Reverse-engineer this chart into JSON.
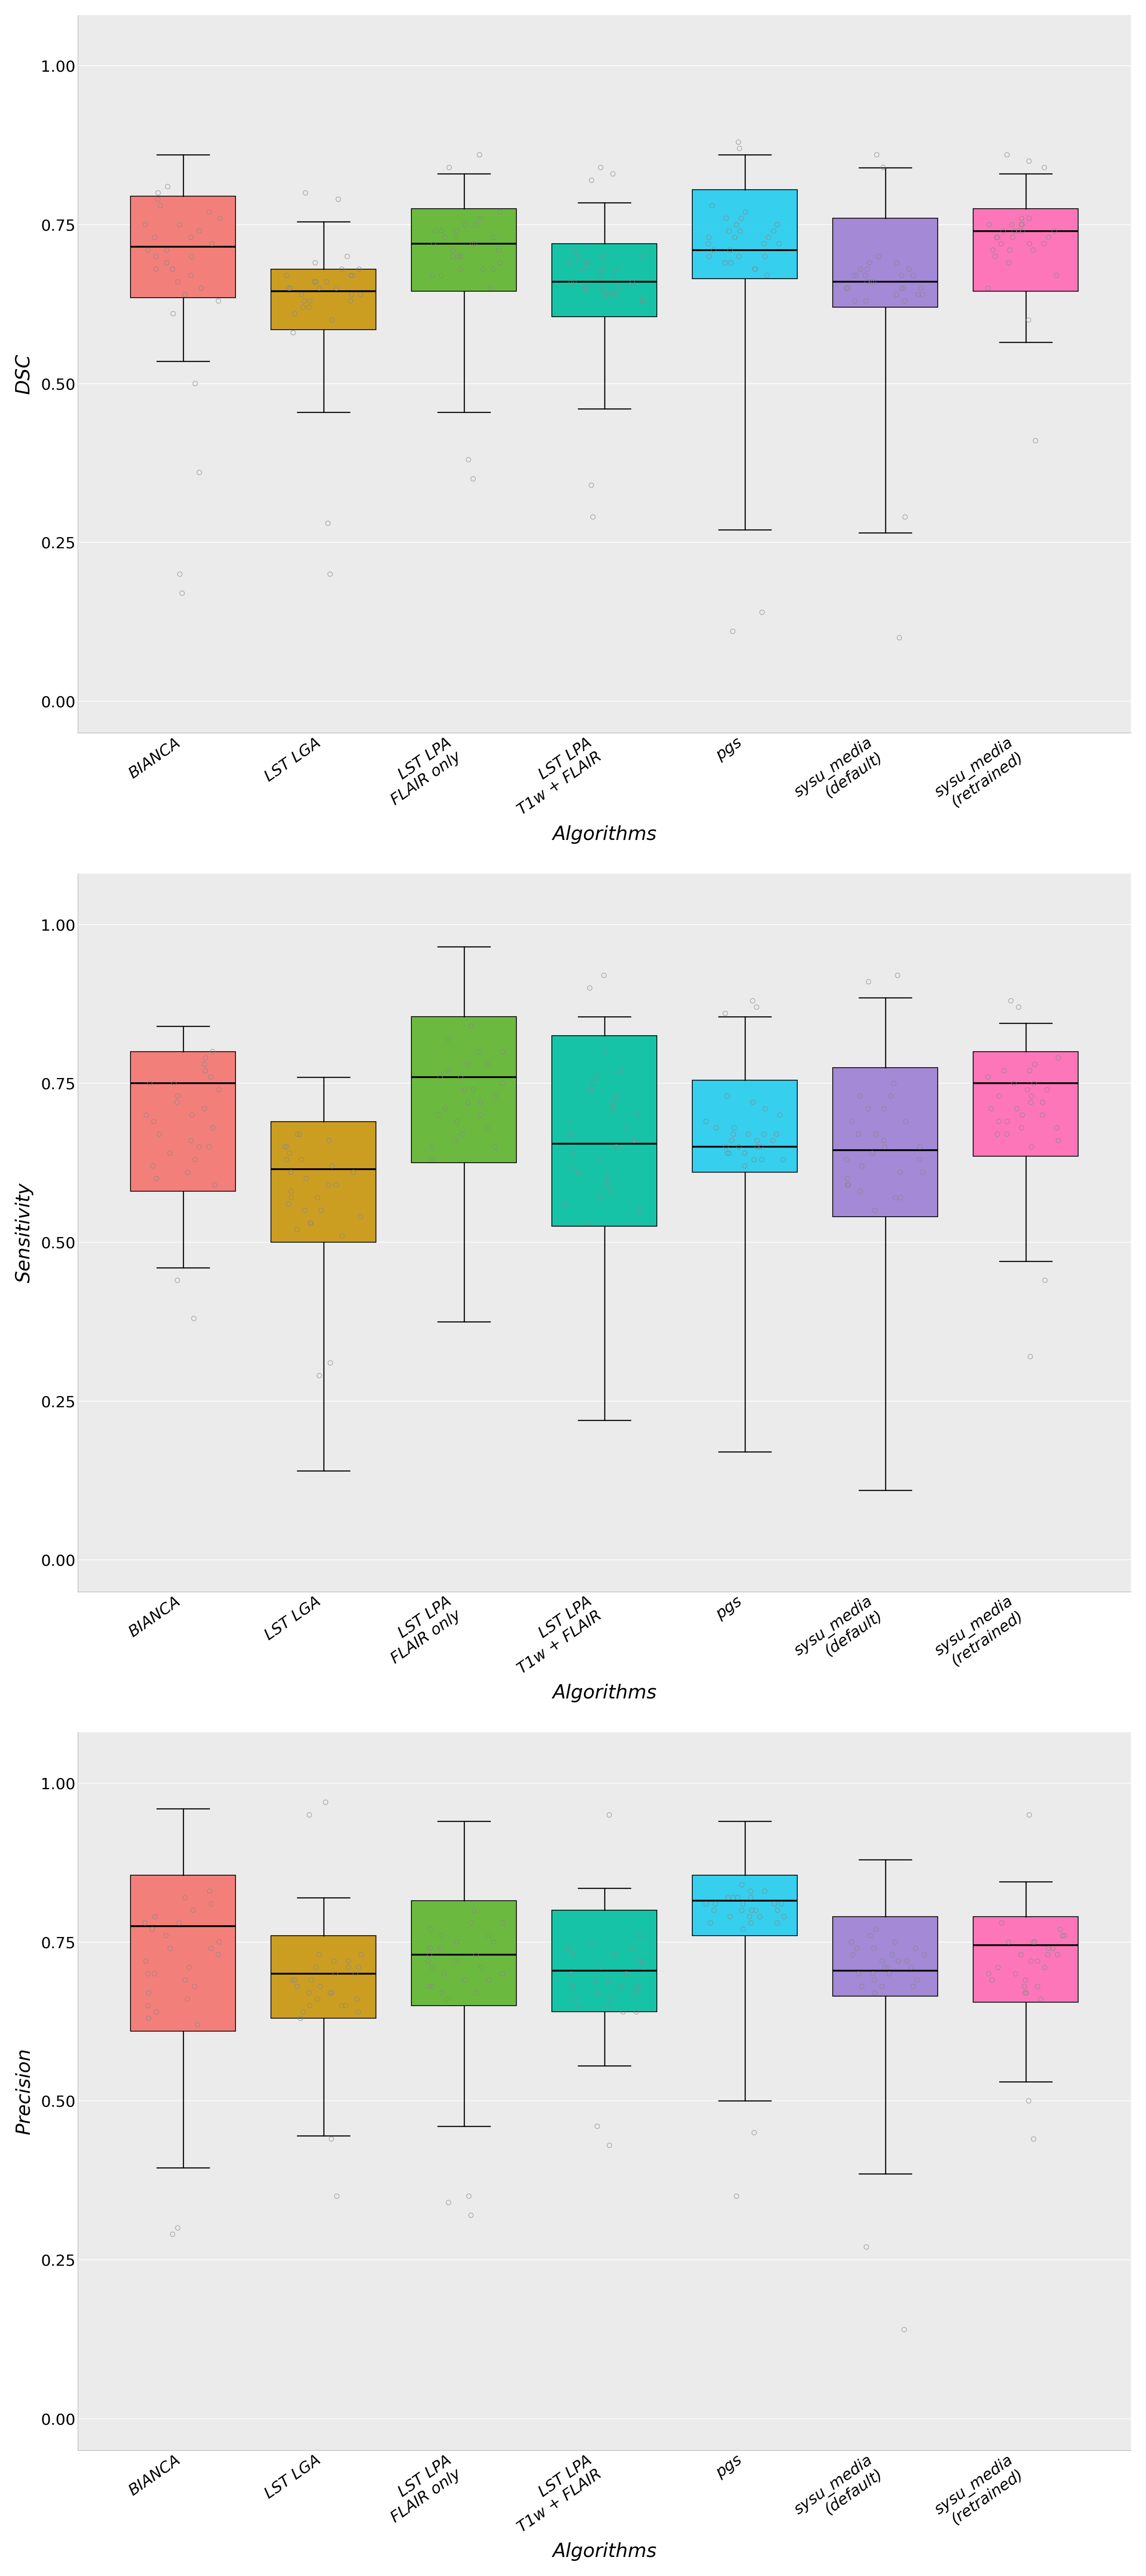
{
  "algorithms": [
    "BIANCA",
    "LST LGA",
    "LST LPA\nFLAIR only",
    "LST LPA\nT1w + FLAIR",
    "pgs",
    "sysu_media\n(default)",
    "sysu_media\n(retrained)"
  ],
  "colors": [
    "#F4736E",
    "#C8960C",
    "#5DB52C",
    "#00BFA0",
    "#22CCEE",
    "#9B7FD4",
    "#FF69B4"
  ],
  "panels": [
    {
      "ylabel": "DSC",
      "boxes": [
        {
          "q1": 0.635,
          "median": 0.715,
          "q3": 0.795,
          "whislo": 0.535,
          "whishi": 0.86,
          "fliers_lo": [
            0.36,
            0.5,
            0.2,
            0.17
          ],
          "fliers_hi": []
        },
        {
          "q1": 0.585,
          "median": 0.645,
          "q3": 0.68,
          "whislo": 0.455,
          "whishi": 0.755,
          "fliers_lo": [
            0.28,
            0.2
          ],
          "fliers_hi": [
            0.79,
            0.8
          ]
        },
        {
          "q1": 0.645,
          "median": 0.72,
          "q3": 0.775,
          "whislo": 0.455,
          "whishi": 0.83,
          "fliers_lo": [
            0.35,
            0.38
          ],
          "fliers_hi": [
            0.84,
            0.86
          ]
        },
        {
          "q1": 0.605,
          "median": 0.66,
          "q3": 0.72,
          "whislo": 0.46,
          "whishi": 0.785,
          "fliers_lo": [
            0.29,
            0.34
          ],
          "fliers_hi": [
            0.82,
            0.83,
            0.84
          ]
        },
        {
          "q1": 0.665,
          "median": 0.71,
          "q3": 0.805,
          "whislo": 0.27,
          "whishi": 0.86,
          "fliers_lo": [
            0.11,
            0.14
          ],
          "fliers_hi": [
            0.87,
            0.88
          ]
        },
        {
          "q1": 0.62,
          "median": 0.66,
          "q3": 0.76,
          "whislo": 0.265,
          "whishi": 0.84,
          "fliers_lo": [
            0.1,
            0.29
          ],
          "fliers_hi": [
            0.84,
            0.86
          ]
        },
        {
          "q1": 0.645,
          "median": 0.74,
          "q3": 0.775,
          "whislo": 0.565,
          "whishi": 0.83,
          "fliers_lo": [
            0.41,
            0.6
          ],
          "fliers_hi": [
            0.84,
            0.85,
            0.86
          ]
        }
      ],
      "scatter_data": [
        [
          0.61,
          0.63,
          0.65,
          0.67,
          0.68,
          0.7,
          0.71,
          0.72,
          0.73,
          0.74,
          0.75,
          0.76,
          0.77,
          0.78,
          0.79,
          0.8,
          0.81,
          0.64,
          0.66,
          0.69,
          0.7,
          0.73,
          0.71,
          0.68,
          0.75
        ],
        [
          0.58,
          0.6,
          0.61,
          0.62,
          0.63,
          0.64,
          0.65,
          0.66,
          0.67,
          0.68,
          0.69,
          0.7,
          0.63,
          0.65,
          0.67,
          0.64,
          0.66,
          0.62,
          0.65,
          0.63,
          0.67,
          0.64,
          0.66,
          0.68,
          0.65
        ],
        [
          0.65,
          0.67,
          0.68,
          0.7,
          0.71,
          0.72,
          0.73,
          0.74,
          0.75,
          0.76,
          0.77,
          0.68,
          0.7,
          0.72,
          0.74,
          0.69,
          0.71,
          0.73,
          0.75,
          0.67,
          0.72,
          0.74,
          0.7,
          0.68,
          0.73
        ],
        [
          0.63,
          0.64,
          0.65,
          0.66,
          0.67,
          0.68,
          0.69,
          0.7,
          0.71,
          0.64,
          0.66,
          0.68,
          0.7,
          0.65,
          0.67,
          0.69,
          0.63,
          0.65,
          0.67,
          0.69,
          0.64,
          0.66,
          0.68,
          0.7,
          0.65
        ],
        [
          0.67,
          0.68,
          0.69,
          0.7,
          0.71,
          0.72,
          0.73,
          0.74,
          0.75,
          0.76,
          0.77,
          0.78,
          0.7,
          0.72,
          0.74,
          0.69,
          0.71,
          0.73,
          0.75,
          0.68,
          0.72,
          0.74,
          0.7,
          0.73,
          0.76
        ],
        [
          0.63,
          0.64,
          0.65,
          0.66,
          0.67,
          0.68,
          0.69,
          0.7,
          0.65,
          0.67,
          0.63,
          0.65,
          0.67,
          0.69,
          0.64,
          0.66,
          0.68,
          0.64,
          0.66,
          0.68,
          0.65,
          0.67,
          0.63,
          0.65,
          0.67
        ],
        [
          0.65,
          0.67,
          0.69,
          0.71,
          0.73,
          0.75,
          0.74,
          0.76,
          0.72,
          0.74,
          0.7,
          0.73,
          0.75,
          0.72,
          0.74,
          0.71,
          0.73,
          0.75,
          0.72,
          0.74,
          0.73,
          0.75,
          0.71,
          0.74,
          0.76
        ]
      ]
    },
    {
      "ylabel": "Sensitivity",
      "boxes": [
        {
          "q1": 0.58,
          "median": 0.75,
          "q3": 0.8,
          "whislo": 0.46,
          "whishi": 0.84,
          "fliers_lo": [
            0.38,
            0.44
          ],
          "fliers_hi": []
        },
        {
          "q1": 0.5,
          "median": 0.615,
          "q3": 0.69,
          "whislo": 0.14,
          "whishi": 0.76,
          "fliers_lo": [
            0.29,
            0.31
          ],
          "fliers_hi": []
        },
        {
          "q1": 0.625,
          "median": 0.76,
          "q3": 0.855,
          "whislo": 0.375,
          "whishi": 0.965,
          "fliers_lo": [],
          "fliers_hi": []
        },
        {
          "q1": 0.525,
          "median": 0.655,
          "q3": 0.825,
          "whislo": 0.22,
          "whishi": 0.855,
          "fliers_lo": [],
          "fliers_hi": [
            0.9,
            0.92
          ]
        },
        {
          "q1": 0.61,
          "median": 0.65,
          "q3": 0.755,
          "whislo": 0.17,
          "whishi": 0.855,
          "fliers_lo": [],
          "fliers_hi": [
            0.86,
            0.87,
            0.88
          ]
        },
        {
          "q1": 0.54,
          "median": 0.645,
          "q3": 0.775,
          "whislo": 0.11,
          "whishi": 0.885,
          "fliers_lo": [],
          "fliers_hi": [
            0.91,
            0.92
          ]
        },
        {
          "q1": 0.635,
          "median": 0.75,
          "q3": 0.8,
          "whislo": 0.47,
          "whishi": 0.845,
          "fliers_lo": [
            0.32,
            0.44
          ],
          "fliers_hi": [
            0.87,
            0.88
          ]
        }
      ],
      "scatter_data": [
        [
          0.59,
          0.61,
          0.63,
          0.65,
          0.67,
          0.69,
          0.71,
          0.73,
          0.75,
          0.77,
          0.79,
          0.6,
          0.62,
          0.64,
          0.66,
          0.68,
          0.7,
          0.72,
          0.74,
          0.76,
          0.78,
          0.8,
          0.75,
          0.7,
          0.65
        ],
        [
          0.51,
          0.53,
          0.55,
          0.57,
          0.59,
          0.61,
          0.63,
          0.65,
          0.67,
          0.52,
          0.54,
          0.56,
          0.58,
          0.6,
          0.62,
          0.64,
          0.66,
          0.53,
          0.55,
          0.57,
          0.59,
          0.61,
          0.63,
          0.65,
          0.67
        ],
        [
          0.63,
          0.65,
          0.67,
          0.7,
          0.72,
          0.74,
          0.76,
          0.78,
          0.8,
          0.82,
          0.84,
          0.65,
          0.68,
          0.71,
          0.74,
          0.77,
          0.8,
          0.66,
          0.69,
          0.72,
          0.75,
          0.78,
          0.7,
          0.73,
          0.76
        ],
        [
          0.53,
          0.56,
          0.59,
          0.62,
          0.65,
          0.68,
          0.71,
          0.74,
          0.77,
          0.8,
          0.55,
          0.58,
          0.61,
          0.64,
          0.67,
          0.7,
          0.73,
          0.76,
          0.57,
          0.6,
          0.63,
          0.66,
          0.69,
          0.72,
          0.75
        ],
        [
          0.62,
          0.63,
          0.64,
          0.65,
          0.66,
          0.67,
          0.68,
          0.69,
          0.7,
          0.71,
          0.72,
          0.73,
          0.63,
          0.65,
          0.67,
          0.64,
          0.66,
          0.68,
          0.65,
          0.67,
          0.63,
          0.65,
          0.67,
          0.64,
          0.66
        ],
        [
          0.55,
          0.57,
          0.59,
          0.61,
          0.63,
          0.65,
          0.67,
          0.69,
          0.71,
          0.73,
          0.75,
          0.57,
          0.59,
          0.61,
          0.63,
          0.65,
          0.67,
          0.69,
          0.71,
          0.73,
          0.58,
          0.6,
          0.62,
          0.64,
          0.66
        ],
        [
          0.65,
          0.67,
          0.69,
          0.71,
          0.73,
          0.75,
          0.77,
          0.79,
          0.66,
          0.68,
          0.7,
          0.72,
          0.74,
          0.76,
          0.78,
          0.67,
          0.69,
          0.71,
          0.73,
          0.75,
          0.77,
          0.68,
          0.7,
          0.72,
          0.74
        ]
      ]
    },
    {
      "ylabel": "Precision",
      "boxes": [
        {
          "q1": 0.61,
          "median": 0.775,
          "q3": 0.855,
          "whislo": 0.395,
          "whishi": 0.96,
          "fliers_lo": [
            0.29,
            0.3
          ],
          "fliers_hi": []
        },
        {
          "q1": 0.63,
          "median": 0.7,
          "q3": 0.76,
          "whislo": 0.445,
          "whishi": 0.82,
          "fliers_lo": [
            0.35,
            0.44
          ],
          "fliers_hi": [
            0.95,
            0.97
          ]
        },
        {
          "q1": 0.65,
          "median": 0.73,
          "q3": 0.815,
          "whislo": 0.46,
          "whishi": 0.94,
          "fliers_lo": [
            0.32,
            0.34,
            0.35
          ],
          "fliers_hi": []
        },
        {
          "q1": 0.64,
          "median": 0.705,
          "q3": 0.8,
          "whislo": 0.555,
          "whishi": 0.835,
          "fliers_lo": [
            0.43,
            0.46
          ],
          "fliers_hi": [
            0.95
          ]
        },
        {
          "q1": 0.76,
          "median": 0.815,
          "q3": 0.855,
          "whislo": 0.5,
          "whishi": 0.94,
          "fliers_lo": [
            0.35,
            0.45
          ],
          "fliers_hi": []
        },
        {
          "q1": 0.665,
          "median": 0.705,
          "q3": 0.79,
          "whislo": 0.385,
          "whishi": 0.88,
          "fliers_lo": [
            0.14,
            0.27
          ],
          "fliers_hi": []
        },
        {
          "q1": 0.655,
          "median": 0.745,
          "q3": 0.79,
          "whislo": 0.53,
          "whishi": 0.845,
          "fliers_lo": [
            0.44,
            0.5
          ],
          "fliers_hi": [
            0.95
          ]
        }
      ],
      "scatter_data": [
        [
          0.62,
          0.65,
          0.68,
          0.71,
          0.74,
          0.77,
          0.8,
          0.83,
          0.64,
          0.67,
          0.7,
          0.73,
          0.76,
          0.79,
          0.82,
          0.63,
          0.66,
          0.69,
          0.72,
          0.75,
          0.78,
          0.81,
          0.7,
          0.74,
          0.78
        ],
        [
          0.63,
          0.65,
          0.67,
          0.69,
          0.71,
          0.73,
          0.65,
          0.67,
          0.69,
          0.71,
          0.73,
          0.64,
          0.66,
          0.68,
          0.7,
          0.72,
          0.65,
          0.67,
          0.69,
          0.71,
          0.64,
          0.66,
          0.68,
          0.7,
          0.72
        ],
        [
          0.66,
          0.68,
          0.7,
          0.72,
          0.74,
          0.76,
          0.78,
          0.8,
          0.67,
          0.69,
          0.71,
          0.73,
          0.75,
          0.77,
          0.67,
          0.69,
          0.71,
          0.73,
          0.75,
          0.68,
          0.7,
          0.72,
          0.74,
          0.76,
          0.78
        ],
        [
          0.64,
          0.66,
          0.68,
          0.7,
          0.72,
          0.74,
          0.76,
          0.65,
          0.67,
          0.69,
          0.71,
          0.73,
          0.75,
          0.64,
          0.66,
          0.68,
          0.7,
          0.72,
          0.74,
          0.65,
          0.67,
          0.69,
          0.71,
          0.73,
          0.68
        ],
        [
          0.77,
          0.78,
          0.79,
          0.8,
          0.81,
          0.82,
          0.83,
          0.84,
          0.78,
          0.79,
          0.8,
          0.81,
          0.82,
          0.83,
          0.78,
          0.79,
          0.8,
          0.81,
          0.82,
          0.79,
          0.8,
          0.81,
          0.82,
          0.8,
          0.81
        ],
        [
          0.67,
          0.69,
          0.71,
          0.73,
          0.75,
          0.77,
          0.68,
          0.7,
          0.72,
          0.74,
          0.76,
          0.68,
          0.7,
          0.72,
          0.74,
          0.69,
          0.71,
          0.73,
          0.75,
          0.68,
          0.7,
          0.72,
          0.74,
          0.71,
          0.73
        ],
        [
          0.66,
          0.68,
          0.7,
          0.72,
          0.74,
          0.76,
          0.78,
          0.67,
          0.69,
          0.71,
          0.73,
          0.75,
          0.77,
          0.67,
          0.69,
          0.71,
          0.73,
          0.75,
          0.68,
          0.7,
          0.72,
          0.74,
          0.76,
          0.73,
          0.75
        ]
      ]
    }
  ],
  "background_color": "#FFFFFF",
  "panel_bg_color": "#EBEBEB",
  "grid_color": "#FFFFFF",
  "tick_label_size": 26,
  "axis_label_size": 32,
  "box_width": 0.75,
  "scatter_size": 60
}
